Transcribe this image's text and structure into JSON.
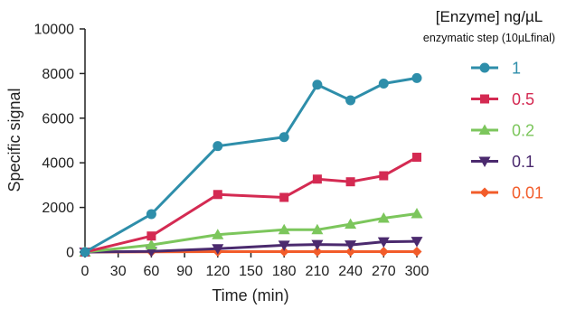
{
  "chart_data": {
    "type": "line",
    "xlabel": "Time (min)",
    "ylabel": "Specific signal",
    "xlim": [
      0,
      300
    ],
    "ylim": [
      0,
      10000
    ],
    "x_ticks": [
      "0",
      "30",
      "60",
      "90",
      "120",
      "150",
      "180",
      "210",
      "240",
      "270",
      "300"
    ],
    "y_ticks": [
      "0",
      "2000",
      "4000",
      "6000",
      "8000",
      "10000"
    ],
    "grid": false,
    "legend": {
      "title": "[Enzyme] ng/µL",
      "subtitle": "enzymatic step (10µLfinal)",
      "placement": "right"
    },
    "series": [
      {
        "name": "1",
        "color": "#2e8eaa",
        "marker": "circle",
        "x": [
          0,
          60,
          120,
          180,
          210,
          240,
          270,
          300
        ],
        "y": [
          0,
          1700,
          4750,
          5150,
          7500,
          6800,
          7550,
          7800
        ]
      },
      {
        "name": "0.5",
        "color": "#d42a52",
        "marker": "square",
        "x": [
          0,
          60,
          120,
          180,
          210,
          240,
          270,
          300
        ],
        "y": [
          0,
          720,
          2580,
          2450,
          3270,
          3150,
          3420,
          4250
        ]
      },
      {
        "name": "0.2",
        "color": "#7cc65c",
        "marker": "triangle-up",
        "x": [
          0,
          60,
          120,
          180,
          210,
          240,
          270,
          300
        ],
        "y": [
          0,
          320,
          780,
          1000,
          1000,
          1250,
          1520,
          1720
        ]
      },
      {
        "name": "0.1",
        "color": "#4b2a6e",
        "marker": "triangle-down",
        "x": [
          0,
          60,
          120,
          180,
          210,
          240,
          270,
          300
        ],
        "y": [
          0,
          30,
          150,
          310,
          340,
          320,
          460,
          480
        ]
      },
      {
        "name": "0.01",
        "color": "#f25c2a",
        "marker": "diamond",
        "x": [
          0,
          60,
          120,
          180,
          210,
          240,
          270,
          300
        ],
        "y": [
          0,
          10,
          20,
          20,
          20,
          20,
          20,
          20
        ]
      }
    ]
  }
}
